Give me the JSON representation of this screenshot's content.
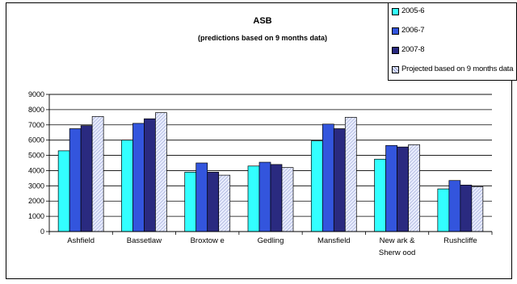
{
  "chart_data": {
    "type": "bar",
    "title": "ASB",
    "subtitle": "(predictions based on 9 months data)",
    "categories": [
      "Ashfield",
      "Bassetlaw",
      "Broxtowe",
      "Gedling",
      "Mansfield",
      "Newark & Sherwood",
      "Rushcliffe"
    ],
    "category_label_lines": [
      [
        "Ashfield"
      ],
      [
        "Bassetlaw"
      ],
      [
        "Broxtow e"
      ],
      [
        "Gedling"
      ],
      [
        "Mansfield"
      ],
      [
        "New ark &",
        "Sherw ood"
      ],
      [
        "Rushcliffe"
      ]
    ],
    "series": [
      {
        "name": "2005-6",
        "color": "#33ffff",
        "values": [
          5300,
          6000,
          3900,
          4300,
          5950,
          4750,
          2800
        ]
      },
      {
        "name": "2006-7",
        "color": "#3355dd",
        "values": [
          6750,
          7100,
          4500,
          4550,
          7050,
          5650,
          3350
        ]
      },
      {
        "name": "2007-8",
        "color": "#2a2a80",
        "values": [
          6950,
          7400,
          3900,
          4400,
          6750,
          5550,
          3050
        ]
      },
      {
        "name": "Projected based on 9 months data",
        "color": "#ccd4ff",
        "pattern": "hatched",
        "values": [
          7550,
          7800,
          3700,
          4200,
          7500,
          5700,
          2950
        ]
      }
    ],
    "ylim": [
      0,
      9000
    ],
    "yticks": [
      "0",
      "1000",
      "2000",
      "3000",
      "4000",
      "5000",
      "6000",
      "7000",
      "8000",
      "9000"
    ],
    "grid": true,
    "legend_position": "top-right",
    "xlabel": "",
    "ylabel": ""
  }
}
